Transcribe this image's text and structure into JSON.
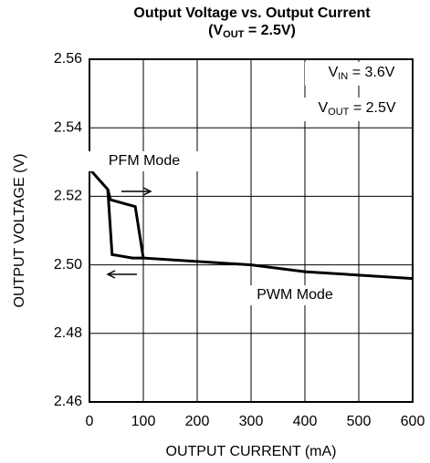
{
  "chart_data": {
    "type": "line",
    "title": "Output Voltage vs. Output Current",
    "subtitle": {
      "main": "(V",
      "sub": "OUT",
      "rest": " = 2.5V)"
    },
    "xlabel": "OUTPUT CURRENT (mA)",
    "ylabel": "OUTPUT VOLTAGE (V)",
    "xlim": [
      0,
      600
    ],
    "xticks": [
      0,
      100,
      200,
      300,
      400,
      500,
      600
    ],
    "ylim": [
      2.46,
      2.56
    ],
    "yticks": [
      2.46,
      2.48,
      {
        "value": 2.5,
        "label": "2.50"
      },
      2.52,
      2.54,
      2.56
    ],
    "grid": true,
    "series": [
      {
        "color": "#000000",
        "x": [
          0,
          34,
          39,
          85,
          100,
          300,
          400,
          600
        ],
        "values": [
          2.528,
          2.522,
          2.519,
          2.517,
          2.502,
          2.5,
          2.498,
          2.496
        ]
      },
      {
        "color": "#000000",
        "x": [
          34,
          42,
          80,
          100
        ],
        "values": [
          2.522,
          2.503,
          2.502,
          2.502
        ]
      }
    ],
    "annotations": [
      "PFM Mode",
      "PWM Mode"
    ],
    "conditions": [
      {
        "main": "V",
        "sub": "IN",
        "rest": " = 3.6V"
      },
      {
        "main": "V",
        "sub": "OUT",
        "rest": " = 2.5V"
      }
    ]
  }
}
